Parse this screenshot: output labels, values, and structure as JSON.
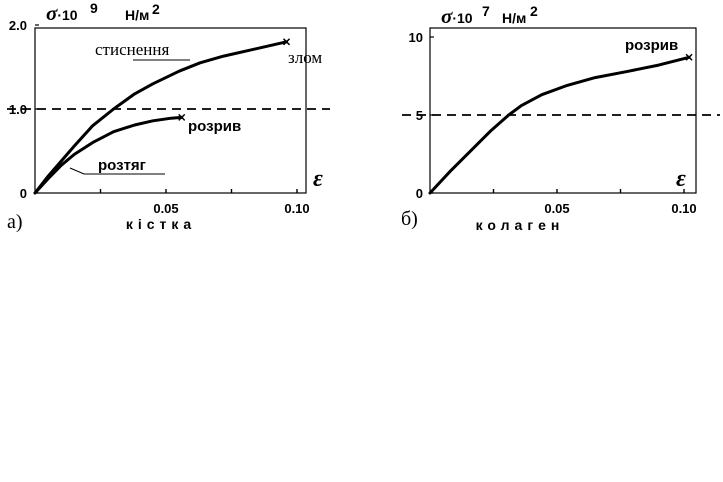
{
  "chart_data": [
    {
      "type": "line",
      "panel_label": "а)",
      "y_symbol": "σ",
      "y_factor": "·10",
      "y_exponent": "9",
      "y_unit": "Н/м",
      "y_unit_power": "2",
      "xlabel": "ε",
      "caption": "кістка",
      "xlim": [
        0,
        0.105
      ],
      "ylim": [
        0,
        2.0
      ],
      "x_ticks": [
        {
          "v": 0.05,
          "label": "0.05"
        },
        {
          "v": 0.1,
          "label": "0.10"
        }
      ],
      "x_minor": [
        0.025,
        0.075
      ],
      "y_ticks": [
        {
          "v": 0,
          "label": "0"
        },
        {
          "v": 1.0,
          "label": "1.0"
        },
        {
          "v": 2.0,
          "label": "2.0"
        }
      ],
      "reference_line": 1.0,
      "series": [
        {
          "name": "стиснення",
          "x": [
            0,
            0.005,
            0.01,
            0.015,
            0.022,
            0.03,
            0.038,
            0.045,
            0.055,
            0.063,
            0.072,
            0.082,
            0.096
          ],
          "y": [
            0,
            0.2,
            0.38,
            0.56,
            0.8,
            1.0,
            1.18,
            1.3,
            1.45,
            1.55,
            1.63,
            1.7,
            1.8
          ],
          "end_label": "злом"
        },
        {
          "name": "розтяг",
          "x": [
            0,
            0.005,
            0.01,
            0.015,
            0.022,
            0.03,
            0.038,
            0.045,
            0.052,
            0.056
          ],
          "y": [
            0,
            0.17,
            0.33,
            0.46,
            0.6,
            0.73,
            0.81,
            0.86,
            0.89,
            0.9
          ],
          "end_label": "розрив"
        }
      ]
    },
    {
      "type": "line",
      "panel_label": "б)",
      "y_symbol": "σ",
      "y_factor": "·10",
      "y_exponent": "7",
      "y_unit": "Н/м",
      "y_unit_power": "2",
      "xlabel": "ε",
      "caption": "колаген",
      "xlim": [
        0,
        0.105
      ],
      "ylim": [
        0,
        10
      ],
      "x_ticks": [
        {
          "v": 0.05,
          "label": "0.05"
        },
        {
          "v": 0.1,
          "label": "0.10"
        }
      ],
      "x_minor": [
        0.025,
        0.075
      ],
      "y_ticks": [
        {
          "v": 0,
          "label": "0"
        },
        {
          "v": 5,
          "label": "5"
        },
        {
          "v": 10,
          "label": "10"
        }
      ],
      "reference_line": 5,
      "series": [
        {
          "x": [
            0,
            0.008,
            0.016,
            0.024,
            0.031,
            0.036,
            0.044,
            0.054,
            0.065,
            0.078,
            0.09,
            0.102
          ],
          "y": [
            0,
            1.4,
            2.7,
            4.0,
            5.0,
            5.6,
            6.3,
            6.9,
            7.4,
            7.8,
            8.2,
            8.7
          ],
          "end_label": "розрив"
        }
      ]
    }
  ]
}
